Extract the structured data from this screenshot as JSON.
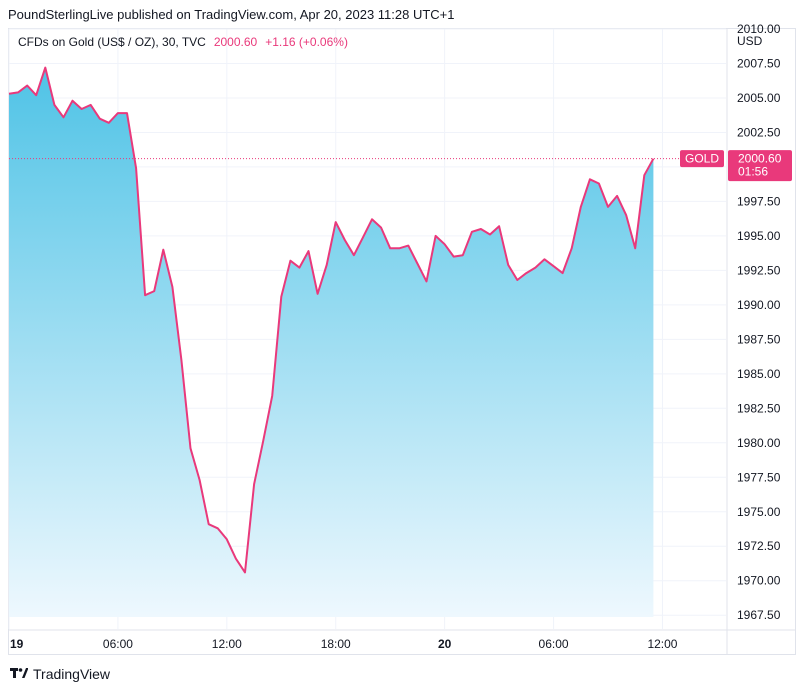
{
  "header": {
    "publisher_line": "PoundSterlingLive published on TradingView.com, Apr 20, 2023 11:28 UTC+1"
  },
  "legend": {
    "symbol": "CFDs on Gold (US$ / OZ), 30, TVC",
    "price": "2000.60",
    "change": "+1.16 (+0.06%)"
  },
  "footer": {
    "brand": "TradingView"
  },
  "colors": {
    "line": "#e9397b",
    "fill_top": "#4fc3e6",
    "fill_bottom": "#eef8fe",
    "grid": "#f0f3fa"
  },
  "chart_data": {
    "type": "area",
    "currency_label": "USD",
    "ylim": [
      1966.5,
      2010
    ],
    "y_ticks": [
      1967.5,
      1970,
      1972.5,
      1975,
      1977.5,
      1980,
      1982.5,
      1985,
      1987.5,
      1990,
      1992.5,
      1995,
      1997.5,
      2000,
      2002.5,
      2005,
      2007.5,
      2010
    ],
    "y_tick_labels": [
      "1967.50",
      "1970.00",
      "1972.50",
      "1975.00",
      "1977.50",
      "1980.00",
      "1982.50",
      "1985.00",
      "1987.50",
      "1990.00",
      "1992.50",
      "1995.00",
      "1997.50",
      "",
      "2002.50",
      "2005.00",
      "2007.50",
      "2010.00"
    ],
    "x_unit": "hours since Apr 19 00:00",
    "xlim": [
      0,
      39.5
    ],
    "x_ticks": [
      {
        "x": 0,
        "label": "19",
        "bold": true
      },
      {
        "x": 6,
        "label": "06:00",
        "bold": false
      },
      {
        "x": 12,
        "label": "12:00",
        "bold": false
      },
      {
        "x": 18,
        "label": "18:00",
        "bold": false
      },
      {
        "x": 24,
        "label": "20",
        "bold": true
      },
      {
        "x": 30,
        "label": "06:00",
        "bold": false
      },
      {
        "x": 36,
        "label": "12:00",
        "bold": false
      }
    ],
    "series": [
      {
        "name": "GOLD",
        "x": [
          0,
          0.5,
          1,
          1.5,
          2,
          2.5,
          3,
          3.5,
          4,
          4.5,
          5,
          5.5,
          6,
          6.5,
          7,
          7.5,
          8,
          8.5,
          9,
          9.5,
          10,
          10.5,
          11,
          11.5,
          12,
          12.5,
          13,
          13.5,
          14,
          14.5,
          15,
          15.5,
          16,
          16.5,
          17,
          17.5,
          18,
          18.5,
          19,
          19.5,
          20,
          20.5,
          21,
          21.5,
          22,
          22.5,
          23,
          23.5,
          24,
          24.5,
          25,
          25.5,
          26,
          26.5,
          27,
          27.5,
          28,
          28.5,
          29,
          29.5,
          30,
          30.5,
          31,
          31.5,
          32,
          32.5,
          33,
          33.5,
          34,
          34.5,
          35,
          35.5
        ],
        "values": [
          2005.3,
          2005.4,
          2005.9,
          2005.2,
          2007.2,
          2004.5,
          2003.6,
          2004.8,
          2004.2,
          2004.5,
          2003.5,
          2003.2,
          2003.9,
          2003.9,
          1999.9,
          1990.7,
          1991.0,
          1994.0,
          1991.3,
          1986.0,
          1979.6,
          1977.3,
          1974.1,
          1973.8,
          1973.0,
          1971.6,
          1970.6,
          1977.0,
          1980.1,
          1983.4,
          1990.6,
          1993.2,
          1992.7,
          1993.9,
          1990.8,
          1992.9,
          1996.0,
          1994.7,
          1993.6,
          1994.9,
          1996.2,
          1995.6,
          1994.1,
          1994.1,
          1994.3,
          1993.0,
          1991.7,
          1995.0,
          1994.4,
          1993.5,
          1993.6,
          1995.3,
          1995.5,
          1995.1,
          1995.7,
          1992.9,
          1991.8,
          1992.3,
          1992.7,
          1993.3,
          1992.8,
          1992.3,
          1994.1,
          1997.1,
          1999.1,
          1998.8,
          1997.1,
          1997.9,
          1996.5,
          1994.1,
          1999.4,
          2000.6
        ]
      }
    ],
    "last_value_label": {
      "name": "GOLD",
      "price": "2000.60",
      "countdown": "01:56"
    }
  }
}
